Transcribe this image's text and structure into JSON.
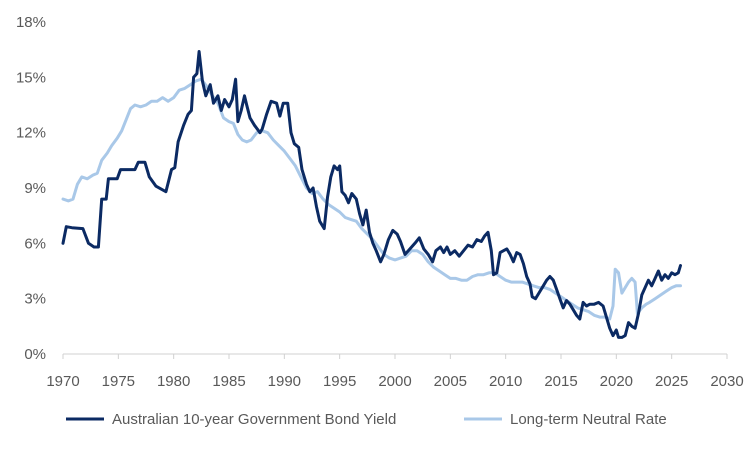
{
  "chart_data": {
    "type": "line",
    "title": "",
    "xlabel": "",
    "ylabel": "",
    "xlim": [
      1970,
      2030
    ],
    "ylim": [
      0,
      18
    ],
    "x_ticks": [
      "1970",
      "1975",
      "1980",
      "1985",
      "1990",
      "1995",
      "2000",
      "2005",
      "2010",
      "2015",
      "2020",
      "2025",
      "2030"
    ],
    "y_ticks": [
      "0%",
      "3%",
      "6%",
      "9%",
      "12%",
      "15%",
      "18%"
    ],
    "grid": false,
    "legend_position": "bottom",
    "series": [
      {
        "name": "Australian 10-year Government Bond Yield",
        "color": "#0b2a63",
        "points": [
          [
            1970.0,
            6.0
          ],
          [
            1970.3,
            6.9
          ],
          [
            1970.8,
            6.85
          ],
          [
            1971.8,
            6.8
          ],
          [
            1972.3,
            6.0
          ],
          [
            1972.8,
            5.8
          ],
          [
            1973.2,
            5.8
          ],
          [
            1973.5,
            8.4
          ],
          [
            1973.9,
            8.4
          ],
          [
            1974.1,
            9.5
          ],
          [
            1974.9,
            9.5
          ],
          [
            1975.2,
            10.0
          ],
          [
            1976.5,
            10.0
          ],
          [
            1976.8,
            10.4
          ],
          [
            1977.4,
            10.4
          ],
          [
            1977.8,
            9.6
          ],
          [
            1978.4,
            9.1
          ],
          [
            1979.3,
            8.8
          ],
          [
            1979.8,
            10.0
          ],
          [
            1980.1,
            10.1
          ],
          [
            1980.4,
            11.5
          ],
          [
            1980.9,
            12.4
          ],
          [
            1981.3,
            13.0
          ],
          [
            1981.6,
            13.2
          ],
          [
            1981.8,
            15.0
          ],
          [
            1982.1,
            15.2
          ],
          [
            1982.3,
            16.4
          ],
          [
            1982.6,
            14.8
          ],
          [
            1982.9,
            14.0
          ],
          [
            1983.3,
            14.6
          ],
          [
            1983.6,
            13.6
          ],
          [
            1984.0,
            14.0
          ],
          [
            1984.3,
            13.2
          ],
          [
            1984.6,
            13.8
          ],
          [
            1985.0,
            13.4
          ],
          [
            1985.3,
            13.8
          ],
          [
            1985.6,
            14.9
          ],
          [
            1985.8,
            12.6
          ],
          [
            1986.1,
            13.2
          ],
          [
            1986.4,
            14.0
          ],
          [
            1986.6,
            13.5
          ],
          [
            1986.9,
            12.8
          ],
          [
            1987.3,
            12.4
          ],
          [
            1987.8,
            12.0
          ],
          [
            1988.0,
            12.2
          ],
          [
            1988.4,
            13.0
          ],
          [
            1988.8,
            13.7
          ],
          [
            1989.3,
            13.6
          ],
          [
            1989.6,
            12.9
          ],
          [
            1989.9,
            13.6
          ],
          [
            1990.3,
            13.6
          ],
          [
            1990.6,
            12.0
          ],
          [
            1990.9,
            11.4
          ],
          [
            1991.3,
            11.2
          ],
          [
            1991.6,
            10.0
          ],
          [
            1992.0,
            9.2
          ],
          [
            1992.3,
            8.8
          ],
          [
            1992.6,
            9.0
          ],
          [
            1992.9,
            8.0
          ],
          [
            1993.2,
            7.2
          ],
          [
            1993.6,
            6.8
          ],
          [
            1993.9,
            8.5
          ],
          [
            1994.2,
            9.6
          ],
          [
            1994.5,
            10.2
          ],
          [
            1994.8,
            10.0
          ],
          [
            1995.0,
            10.2
          ],
          [
            1995.2,
            8.8
          ],
          [
            1995.5,
            8.6
          ],
          [
            1995.8,
            8.2
          ],
          [
            1996.1,
            8.7
          ],
          [
            1996.5,
            8.4
          ],
          [
            1996.8,
            7.6
          ],
          [
            1997.1,
            7.0
          ],
          [
            1997.4,
            7.8
          ],
          [
            1997.7,
            6.6
          ],
          [
            1998.0,
            6.0
          ],
          [
            1998.3,
            5.6
          ],
          [
            1998.7,
            5.0
          ],
          [
            1999.0,
            5.4
          ],
          [
            1999.4,
            6.2
          ],
          [
            1999.8,
            6.7
          ],
          [
            2000.2,
            6.5
          ],
          [
            2000.5,
            6.1
          ],
          [
            2000.9,
            5.4
          ],
          [
            2001.2,
            5.6
          ],
          [
            2001.5,
            5.8
          ],
          [
            2001.8,
            6.0
          ],
          [
            2002.2,
            6.3
          ],
          [
            2002.6,
            5.7
          ],
          [
            2003.0,
            5.4
          ],
          [
            2003.4,
            5.0
          ],
          [
            2003.7,
            5.6
          ],
          [
            2004.1,
            5.8
          ],
          [
            2004.4,
            5.5
          ],
          [
            2004.7,
            5.8
          ],
          [
            2005.0,
            5.4
          ],
          [
            2005.4,
            5.6
          ],
          [
            2005.8,
            5.3
          ],
          [
            2006.2,
            5.6
          ],
          [
            2006.6,
            5.9
          ],
          [
            2007.0,
            5.8
          ],
          [
            2007.4,
            6.2
          ],
          [
            2007.8,
            6.1
          ],
          [
            2008.1,
            6.4
          ],
          [
            2008.4,
            6.6
          ],
          [
            2008.7,
            5.6
          ],
          [
            2008.9,
            4.3
          ],
          [
            2009.2,
            4.4
          ],
          [
            2009.5,
            5.5
          ],
          [
            2009.8,
            5.6
          ],
          [
            2010.1,
            5.7
          ],
          [
            2010.4,
            5.4
          ],
          [
            2010.7,
            5.0
          ],
          [
            2011.0,
            5.5
          ],
          [
            2011.3,
            5.4
          ],
          [
            2011.6,
            4.9
          ],
          [
            2011.9,
            4.2
          ],
          [
            2012.2,
            3.8
          ],
          [
            2012.4,
            3.1
          ],
          [
            2012.7,
            3.0
          ],
          [
            2013.0,
            3.3
          ],
          [
            2013.4,
            3.7
          ],
          [
            2013.7,
            4.0
          ],
          [
            2014.0,
            4.2
          ],
          [
            2014.3,
            4.0
          ],
          [
            2014.6,
            3.5
          ],
          [
            2014.9,
            3.0
          ],
          [
            2015.2,
            2.5
          ],
          [
            2015.5,
            2.9
          ],
          [
            2015.8,
            2.7
          ],
          [
            2016.1,
            2.4
          ],
          [
            2016.4,
            2.1
          ],
          [
            2016.7,
            1.9
          ],
          [
            2017.0,
            2.8
          ],
          [
            2017.3,
            2.6
          ],
          [
            2017.6,
            2.7
          ],
          [
            2018.0,
            2.7
          ],
          [
            2018.4,
            2.8
          ],
          [
            2018.8,
            2.6
          ],
          [
            2019.1,
            2.0
          ],
          [
            2019.4,
            1.4
          ],
          [
            2019.7,
            1.0
          ],
          [
            2020.0,
            1.3
          ],
          [
            2020.2,
            0.9
          ],
          [
            2020.5,
            0.9
          ],
          [
            2020.8,
            1.0
          ],
          [
            2021.1,
            1.7
          ],
          [
            2021.4,
            1.5
          ],
          [
            2021.7,
            1.4
          ],
          [
            2022.0,
            2.2
          ],
          [
            2022.3,
            3.2
          ],
          [
            2022.6,
            3.6
          ],
          [
            2022.9,
            4.0
          ],
          [
            2023.2,
            3.7
          ],
          [
            2023.5,
            4.1
          ],
          [
            2023.8,
            4.5
          ],
          [
            2024.1,
            4.0
          ],
          [
            2024.4,
            4.3
          ],
          [
            2024.7,
            4.1
          ],
          [
            2025.0,
            4.4
          ],
          [
            2025.3,
            4.3
          ],
          [
            2025.6,
            4.4
          ],
          [
            2025.8,
            4.8
          ]
        ]
      },
      {
        "name": "Long-term Neutral Rate",
        "color": "#a9c8e8",
        "points": [
          [
            1970.0,
            8.4
          ],
          [
            1970.5,
            8.3
          ],
          [
            1970.9,
            8.4
          ],
          [
            1971.3,
            9.2
          ],
          [
            1971.7,
            9.6
          ],
          [
            1972.2,
            9.5
          ],
          [
            1972.7,
            9.7
          ],
          [
            1973.1,
            9.8
          ],
          [
            1973.5,
            10.5
          ],
          [
            1974.0,
            10.9
          ],
          [
            1974.4,
            11.3
          ],
          [
            1974.9,
            11.7
          ],
          [
            1975.3,
            12.1
          ],
          [
            1975.7,
            12.7
          ],
          [
            1976.1,
            13.3
          ],
          [
            1976.5,
            13.5
          ],
          [
            1977.0,
            13.4
          ],
          [
            1977.5,
            13.5
          ],
          [
            1978.0,
            13.7
          ],
          [
            1978.5,
            13.7
          ],
          [
            1979.0,
            13.9
          ],
          [
            1979.5,
            13.7
          ],
          [
            1980.0,
            13.9
          ],
          [
            1980.5,
            14.3
          ],
          [
            1981.0,
            14.4
          ],
          [
            1981.5,
            14.6
          ],
          [
            1982.0,
            14.8
          ],
          [
            1982.5,
            14.9
          ],
          [
            1983.0,
            14.5
          ],
          [
            1983.5,
            14.0
          ],
          [
            1984.0,
            13.6
          ],
          [
            1984.5,
            12.8
          ],
          [
            1985.0,
            12.6
          ],
          [
            1985.4,
            12.5
          ],
          [
            1985.8,
            11.9
          ],
          [
            1986.2,
            11.6
          ],
          [
            1986.6,
            11.5
          ],
          [
            1987.0,
            11.6
          ],
          [
            1987.5,
            12.0
          ],
          [
            1988.0,
            12.1
          ],
          [
            1988.5,
            12.0
          ],
          [
            1989.0,
            11.6
          ],
          [
            1989.5,
            11.3
          ],
          [
            1990.0,
            11.0
          ],
          [
            1990.5,
            10.6
          ],
          [
            1991.0,
            10.2
          ],
          [
            1991.5,
            9.6
          ],
          [
            1992.0,
            9.0
          ],
          [
            1992.5,
            8.7
          ],
          [
            1993.0,
            8.8
          ],
          [
            1993.5,
            8.4
          ],
          [
            1994.0,
            8.1
          ],
          [
            1994.5,
            7.9
          ],
          [
            1995.0,
            7.7
          ],
          [
            1995.5,
            7.4
          ],
          [
            1996.0,
            7.3
          ],
          [
            1996.5,
            7.2
          ],
          [
            1997.0,
            6.8
          ],
          [
            1997.5,
            6.5
          ],
          [
            1998.0,
            6.2
          ],
          [
            1998.5,
            5.8
          ],
          [
            1999.0,
            5.4
          ],
          [
            1999.5,
            5.2
          ],
          [
            2000.0,
            5.1
          ],
          [
            2000.5,
            5.2
          ],
          [
            2001.0,
            5.3
          ],
          [
            2001.5,
            5.6
          ],
          [
            2002.0,
            5.6
          ],
          [
            2002.5,
            5.4
          ],
          [
            2003.0,
            5.0
          ],
          [
            2003.5,
            4.7
          ],
          [
            2004.0,
            4.5
          ],
          [
            2004.5,
            4.3
          ],
          [
            2005.0,
            4.1
          ],
          [
            2005.5,
            4.1
          ],
          [
            2006.0,
            4.0
          ],
          [
            2006.5,
            4.0
          ],
          [
            2007.0,
            4.2
          ],
          [
            2007.5,
            4.3
          ],
          [
            2008.0,
            4.3
          ],
          [
            2008.5,
            4.4
          ],
          [
            2009.0,
            4.4
          ],
          [
            2009.5,
            4.2
          ],
          [
            2010.0,
            4.0
          ],
          [
            2010.5,
            3.9
          ],
          [
            2011.0,
            3.9
          ],
          [
            2011.5,
            3.9
          ],
          [
            2012.0,
            3.8
          ],
          [
            2012.5,
            3.7
          ],
          [
            2013.0,
            3.6
          ],
          [
            2013.5,
            3.6
          ],
          [
            2014.0,
            3.5
          ],
          [
            2014.5,
            3.3
          ],
          [
            2015.0,
            3.1
          ],
          [
            2015.5,
            2.9
          ],
          [
            2016.0,
            2.7
          ],
          [
            2016.5,
            2.5
          ],
          [
            2017.0,
            2.4
          ],
          [
            2017.5,
            2.3
          ],
          [
            2018.0,
            2.1
          ],
          [
            2018.5,
            2.0
          ],
          [
            2019.0,
            2.0
          ],
          [
            2019.4,
            1.9
          ],
          [
            2019.7,
            2.6
          ],
          [
            2019.9,
            4.6
          ],
          [
            2020.2,
            4.4
          ],
          [
            2020.5,
            3.3
          ],
          [
            2020.8,
            3.6
          ],
          [
            2021.1,
            3.9
          ],
          [
            2021.4,
            4.1
          ],
          [
            2021.7,
            3.9
          ],
          [
            2021.9,
            2.2
          ],
          [
            2022.3,
            2.5
          ],
          [
            2022.7,
            2.7
          ],
          [
            2023.0,
            2.8
          ],
          [
            2023.5,
            3.0
          ],
          [
            2024.0,
            3.2
          ],
          [
            2024.5,
            3.4
          ],
          [
            2025.0,
            3.6
          ],
          [
            2025.4,
            3.7
          ],
          [
            2025.8,
            3.7
          ]
        ]
      }
    ]
  }
}
